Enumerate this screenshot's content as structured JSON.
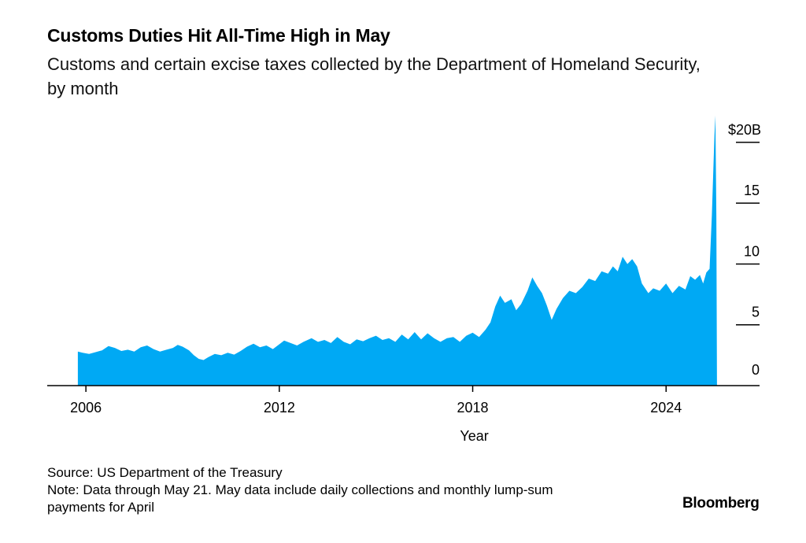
{
  "title": "Customs Duties Hit All-Time High in May",
  "subtitle": "Customs and certain excise taxes collected by the Department of Homeland Security, by month",
  "source": "Source: US Department of the Treasury",
  "note": "Note: Data through May 21. May data include daily collections and monthly lump-sum payments for April",
  "brand": "Bloomberg",
  "colors": {
    "area": "#00a9f4",
    "axis": "#000000"
  },
  "chart_data": {
    "type": "area",
    "title": "Customs Duties Hit All-Time High in May",
    "subtitle": "Customs and certain excise taxes collected by the Department of Homeland Security, by month",
    "xlabel": "Year",
    "ylabel": "",
    "xlim": [
      2004.8,
      2026.9
    ],
    "ylim": [
      0,
      22
    ],
    "x_ticks": [
      2006,
      2012,
      2018,
      2024
    ],
    "x_tick_labels": [
      "2006",
      "2012",
      "2018",
      "2024"
    ],
    "y_ticks": [
      0,
      5,
      10,
      15,
      20
    ],
    "y_tick_labels": [
      "0",
      "5",
      "10",
      "15",
      "$20B"
    ],
    "y_axis_side": "right",
    "grid": false,
    "series": [
      {
        "values": [
          [
            2005.75,
            2.8
          ],
          [
            2005.9,
            2.7
          ],
          [
            2006.1,
            2.6
          ],
          [
            2006.3,
            2.75
          ],
          [
            2006.5,
            2.9
          ],
          [
            2006.7,
            3.25
          ],
          [
            2006.9,
            3.1
          ],
          [
            2007.1,
            2.85
          ],
          [
            2007.3,
            2.95
          ],
          [
            2007.5,
            2.8
          ],
          [
            2007.7,
            3.15
          ],
          [
            2007.9,
            3.3
          ],
          [
            2008.1,
            3.0
          ],
          [
            2008.3,
            2.8
          ],
          [
            2008.5,
            2.95
          ],
          [
            2008.7,
            3.1
          ],
          [
            2008.85,
            3.35
          ],
          [
            2009.0,
            3.2
          ],
          [
            2009.2,
            2.9
          ],
          [
            2009.35,
            2.5
          ],
          [
            2009.5,
            2.2
          ],
          [
            2009.65,
            2.1
          ],
          [
            2009.8,
            2.35
          ],
          [
            2010.0,
            2.6
          ],
          [
            2010.2,
            2.5
          ],
          [
            2010.4,
            2.7
          ],
          [
            2010.6,
            2.55
          ],
          [
            2010.8,
            2.85
          ],
          [
            2011.0,
            3.2
          ],
          [
            2011.2,
            3.45
          ],
          [
            2011.4,
            3.15
          ],
          [
            2011.6,
            3.3
          ],
          [
            2011.8,
            3.0
          ],
          [
            2012.0,
            3.4
          ],
          [
            2012.15,
            3.7
          ],
          [
            2012.35,
            3.5
          ],
          [
            2012.55,
            3.3
          ],
          [
            2012.75,
            3.6
          ],
          [
            2013.0,
            3.9
          ],
          [
            2013.2,
            3.6
          ],
          [
            2013.4,
            3.75
          ],
          [
            2013.6,
            3.5
          ],
          [
            2013.8,
            4.0
          ],
          [
            2014.0,
            3.6
          ],
          [
            2014.2,
            3.4
          ],
          [
            2014.4,
            3.8
          ],
          [
            2014.6,
            3.65
          ],
          [
            2014.8,
            3.9
          ],
          [
            2015.0,
            4.1
          ],
          [
            2015.2,
            3.75
          ],
          [
            2015.4,
            3.9
          ],
          [
            2015.6,
            3.6
          ],
          [
            2015.8,
            4.2
          ],
          [
            2016.0,
            3.8
          ],
          [
            2016.2,
            4.4
          ],
          [
            2016.4,
            3.8
          ],
          [
            2016.6,
            4.3
          ],
          [
            2016.8,
            3.9
          ],
          [
            2017.0,
            3.6
          ],
          [
            2017.2,
            3.9
          ],
          [
            2017.4,
            4.0
          ],
          [
            2017.6,
            3.6
          ],
          [
            2017.8,
            4.1
          ],
          [
            2018.0,
            4.35
          ],
          [
            2018.2,
            4.0
          ],
          [
            2018.4,
            4.6
          ],
          [
            2018.55,
            5.2
          ],
          [
            2018.7,
            6.5
          ],
          [
            2018.85,
            7.4
          ],
          [
            2019.0,
            6.8
          ],
          [
            2019.2,
            7.1
          ],
          [
            2019.35,
            6.2
          ],
          [
            2019.5,
            6.7
          ],
          [
            2019.7,
            7.8
          ],
          [
            2019.85,
            8.9
          ],
          [
            2020.0,
            8.2
          ],
          [
            2020.15,
            7.6
          ],
          [
            2020.3,
            6.6
          ],
          [
            2020.45,
            5.4
          ],
          [
            2020.6,
            6.3
          ],
          [
            2020.8,
            7.2
          ],
          [
            2021.0,
            7.8
          ],
          [
            2021.2,
            7.6
          ],
          [
            2021.4,
            8.1
          ],
          [
            2021.6,
            8.8
          ],
          [
            2021.8,
            8.6
          ],
          [
            2022.0,
            9.4
          ],
          [
            2022.2,
            9.2
          ],
          [
            2022.35,
            9.8
          ],
          [
            2022.5,
            9.4
          ],
          [
            2022.65,
            10.6
          ],
          [
            2022.8,
            10.0
          ],
          [
            2022.95,
            10.4
          ],
          [
            2023.1,
            9.8
          ],
          [
            2023.25,
            8.4
          ],
          [
            2023.45,
            7.6
          ],
          [
            2023.6,
            8.0
          ],
          [
            2023.8,
            7.8
          ],
          [
            2024.0,
            8.4
          ],
          [
            2024.2,
            7.6
          ],
          [
            2024.4,
            8.2
          ],
          [
            2024.6,
            7.9
          ],
          [
            2024.75,
            9.0
          ],
          [
            2024.9,
            8.7
          ],
          [
            2025.05,
            9.1
          ],
          [
            2025.15,
            8.4
          ],
          [
            2025.25,
            9.3
          ],
          [
            2025.35,
            9.6
          ],
          [
            2025.42,
            14.0
          ],
          [
            2025.5,
            20.6
          ],
          [
            2025.53,
            22.2
          ],
          [
            2025.56,
            14.0
          ],
          [
            2025.58,
            0
          ]
        ]
      }
    ]
  }
}
